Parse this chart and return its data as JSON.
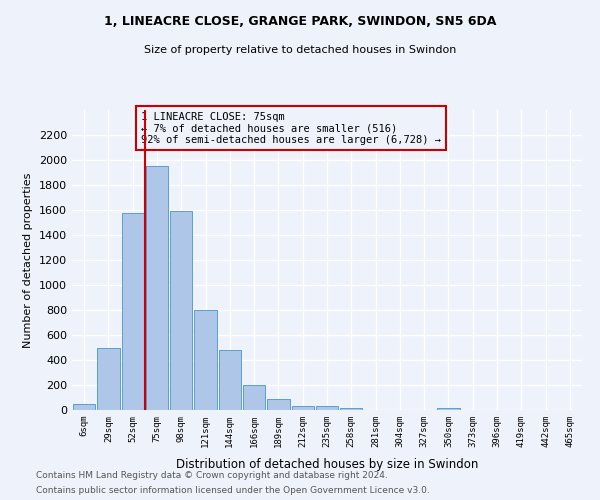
{
  "title1": "1, LINEACRE CLOSE, GRANGE PARK, SWINDON, SN5 6DA",
  "title2": "Size of property relative to detached houses in Swindon",
  "xlabel": "Distribution of detached houses by size in Swindon",
  "ylabel": "Number of detached properties",
  "categories": [
    "6sqm",
    "29sqm",
    "52sqm",
    "75sqm",
    "98sqm",
    "121sqm",
    "144sqm",
    "166sqm",
    "189sqm",
    "212sqm",
    "235sqm",
    "258sqm",
    "281sqm",
    "304sqm",
    "327sqm",
    "350sqm",
    "373sqm",
    "396sqm",
    "419sqm",
    "442sqm",
    "465sqm"
  ],
  "values": [
    50,
    500,
    1580,
    1950,
    1590,
    800,
    480,
    200,
    85,
    35,
    30,
    20,
    0,
    0,
    0,
    20,
    0,
    0,
    0,
    0,
    0
  ],
  "bar_color": "#aec6e8",
  "bar_edge_color": "#5a9fd4",
  "vline_color": "#cc0000",
  "vline_x": 2.5,
  "ylim": [
    0,
    2400
  ],
  "yticks": [
    0,
    200,
    400,
    600,
    800,
    1000,
    1200,
    1400,
    1600,
    1800,
    2000,
    2200
  ],
  "annotation_text": "1 LINEACRE CLOSE: 75sqm\n← 7% of detached houses are smaller (516)\n92% of semi-detached houses are larger (6,728) →",
  "annotation_box_color": "#cc0000",
  "footer1": "Contains HM Land Registry data © Crown copyright and database right 2024.",
  "footer2": "Contains public sector information licensed under the Open Government Licence v3.0.",
  "background_color": "#eef2fa",
  "grid_color": "#d8dde8"
}
